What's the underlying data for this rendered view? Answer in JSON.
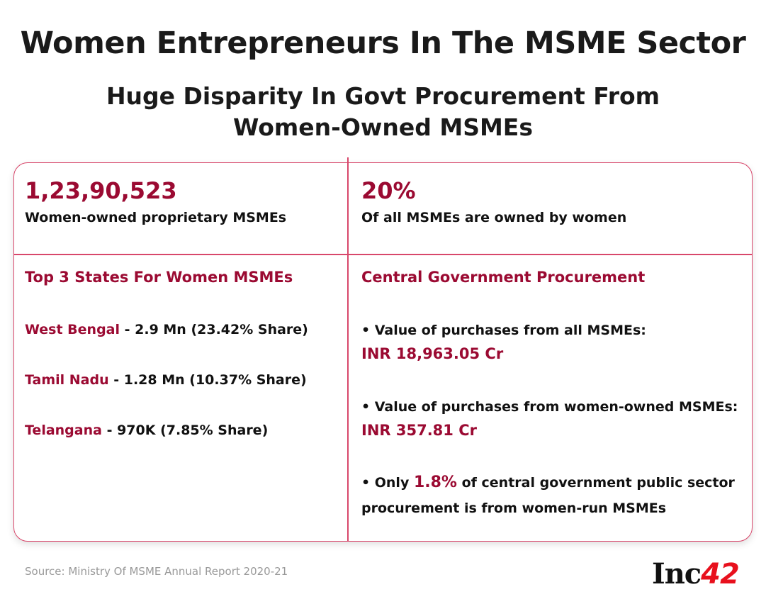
{
  "title": "Women Entrepreneurs In The MSME Sector",
  "subtitle_line1": "Huge Disparity In Govt Procurement From",
  "subtitle_line2": "Women-Owned MSMEs",
  "stats": [
    {
      "value": "1,23,90,523",
      "label": "Women-owned proprietary MSMEs"
    },
    {
      "value": "20%",
      "label": "Of all MSMEs are owned by women"
    }
  ],
  "top_states": {
    "heading": "Top 3 States For Women MSMEs",
    "items": [
      {
        "state": "West Bengal",
        "detail": " - 2.9 Mn (23.42% Share)"
      },
      {
        "state": "Tamil Nadu",
        "detail": " - 1.28 Mn (10.37% Share)"
      },
      {
        "state": "Telangana",
        "detail": " - 970K (7.85% Share)"
      }
    ]
  },
  "procurement": {
    "heading": "Central Government Procurement",
    "all_label": "• Value of purchases from all MSMEs:",
    "all_value": "INR 18,963.05 Cr",
    "women_label": "• Value of purchases from women-owned MSMEs:",
    "women_value": "INR 357.81 Cr",
    "only_prefix": "• Only ",
    "only_pct": "1.8%",
    "only_suffix": " of central government public sector",
    "only_line2": "procurement is from women-run MSMEs"
  },
  "source": "Source: Ministry Of MSME Annual Report 2020-21",
  "logo": {
    "text": "Inc",
    "number": "42"
  },
  "colors": {
    "accent": "#9b0a32",
    "border": "#d8476b",
    "logo_red": "#e8101d"
  }
}
